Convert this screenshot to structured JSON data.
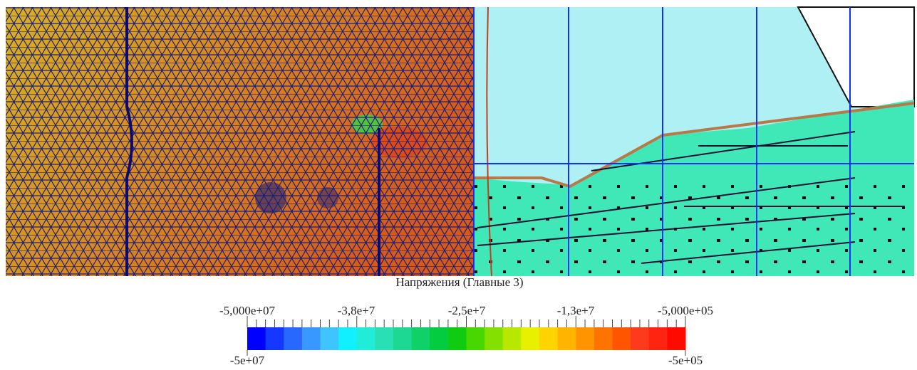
{
  "colorbar": {
    "title": "Напряжения (Главные 3)",
    "top_labels": [
      "-5,000e+07",
      "-3,8e+7",
      "-2,5e+7",
      "-1,3e+7",
      "-5,000e+05"
    ],
    "min_label": "-5e+07",
    "max_label": "-5e+05",
    "colors": [
      "#0000ff",
      "#1438ff",
      "#2868ff",
      "#3898ff",
      "#40c4ff",
      "#10f0ff",
      "#20ecd8",
      "#28e0b4",
      "#1cd890",
      "#10d068",
      "#04cc40",
      "#10cc10",
      "#48d800",
      "#84e000",
      "#b8e800",
      "#e8f000",
      "#ffd400",
      "#ffb400",
      "#ff9400",
      "#ff7400",
      "#ff5400",
      "#ff3a1c",
      "#ff2410",
      "#ff0a00"
    ]
  }
}
